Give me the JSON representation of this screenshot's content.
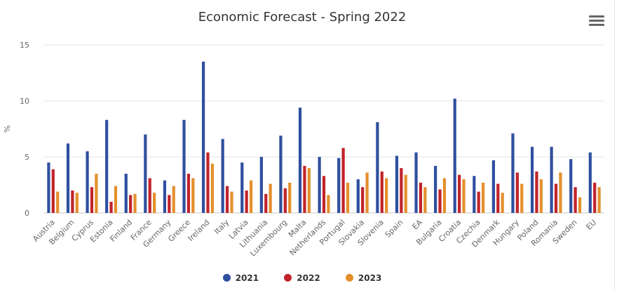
{
  "title": "Economic Forecast - Spring 2022",
  "chart_data": {
    "type": "bar",
    "title": "Economic Forecast - Spring 2022",
    "ylabel": "%",
    "xlabel": "",
    "ylim": [
      0,
      15
    ],
    "yticks": [
      0,
      5,
      10,
      15
    ],
    "grid": true,
    "legend_position": "bottom",
    "categories": [
      "Austria",
      "Belgium",
      "Cyprus",
      "Estonia",
      "Finland",
      "France",
      "Germany",
      "Greece",
      "Ireland",
      "Italy",
      "Latvia",
      "Lithuania",
      "Luxembourg",
      "Malta",
      "Netherlands",
      "Portugal",
      "Slovakia",
      "Slovenia",
      "Spain",
      "EA",
      "Bulgaria",
      "Croatia",
      "Czechia",
      "Denmark",
      "Hungary",
      "Poland",
      "Romania",
      "Sweden",
      "EU"
    ],
    "series": [
      {
        "name": "2021",
        "color": "#2f4f9f",
        "values": [
          4.5,
          6.2,
          5.5,
          8.3,
          3.5,
          7.0,
          2.9,
          8.3,
          13.5,
          6.6,
          4.5,
          5.0,
          6.9,
          9.4,
          5.0,
          4.9,
          3.0,
          8.1,
          5.1,
          5.4,
          4.2,
          10.2,
          3.3,
          4.7,
          7.1,
          5.9,
          5.9,
          4.8,
          5.4
        ]
      },
      {
        "name": "2022",
        "color": "#c1232b",
        "values": [
          3.9,
          2.0,
          2.3,
          1.0,
          1.6,
          3.1,
          1.6,
          3.5,
          5.4,
          2.4,
          2.0,
          1.7,
          2.2,
          4.2,
          3.3,
          5.8,
          2.3,
          3.7,
          4.0,
          2.7,
          2.1,
          3.4,
          1.9,
          2.6,
          3.6,
          3.7,
          2.6,
          2.3,
          2.7
        ]
      },
      {
        "name": "2023",
        "color": "#e48f2c",
        "values": [
          1.9,
          1.8,
          3.5,
          2.4,
          1.7,
          1.8,
          2.4,
          3.1,
          4.4,
          1.9,
          2.9,
          2.6,
          2.7,
          4.0,
          1.6,
          2.7,
          3.6,
          3.1,
          3.4,
          2.3,
          3.1,
          3.0,
          2.7,
          1.8,
          2.6,
          3.0,
          3.6,
          1.4,
          2.3
        ]
      }
    ]
  },
  "legend": [
    "2021",
    "2022",
    "2023"
  ]
}
